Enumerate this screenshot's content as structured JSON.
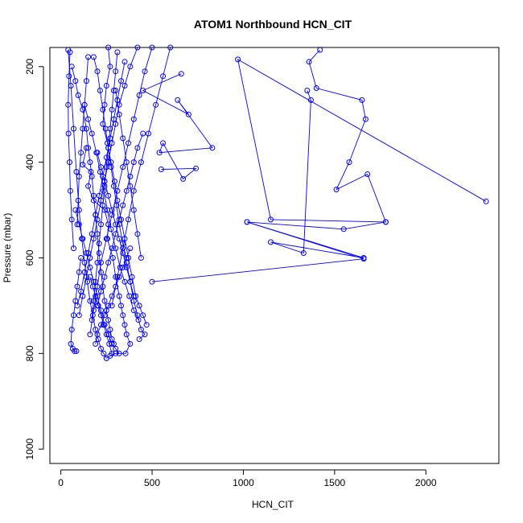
{
  "chart_data": {
    "type": "line",
    "title": "ATOM1 Northbound HCN_CIT",
    "xlabel": "HCN_CIT",
    "ylabel": "Pressure (mbar)",
    "xlim": [
      -60,
      2400
    ],
    "ylim": [
      1030,
      160
    ],
    "y_reversed": true,
    "grid": false,
    "x_ticks": [
      0,
      500,
      1000,
      1500,
      2000
    ],
    "x_tick_labels": [
      "0",
      "500",
      "1000",
      "1500",
      "2000"
    ],
    "y_ticks": [
      200,
      400,
      600,
      800,
      1000
    ],
    "y_tick_labels": [
      "200",
      "400",
      "600",
      "800",
      "1000"
    ],
    "colors": {
      "series": "#0000ff",
      "axis": "#000000"
    },
    "marker": "open-circle",
    "series": [
      {
        "x": [
          1420,
          1360,
          1400,
          1650,
          1670,
          1580,
          1510,
          1680,
          1780,
          1550,
          1020,
          1660,
          1150,
          1330,
          1370,
          1350
        ],
        "y": [
          165,
          190,
          245,
          270,
          310,
          400,
          457,
          425,
          525,
          540,
          525,
          600,
          567,
          590,
          270,
          250
        ]
      },
      {
        "x": [
          2330,
          970,
          1150,
          1780
        ],
        "y": [
          482,
          185,
          520,
          525
        ]
      },
      {
        "x": [
          1020,
          1660,
          500
        ],
        "y": [
          525,
          602,
          650
        ]
      },
      {
        "x": [
          660,
          450,
          700,
          640,
          830,
          540,
          560,
          670,
          740,
          550
        ],
        "y": [
          215,
          250,
          300,
          270,
          370,
          380,
          360,
          435,
          413,
          415
        ]
      },
      {
        "x": [
          140,
          120,
          165,
          150,
          180,
          240,
          260,
          255,
          285,
          300,
          320,
          330,
          340,
          350,
          360,
          380,
          355,
          300,
          270,
          250
        ],
        "y": [
          370,
          405,
          420,
          450,
          480,
          500,
          530,
          560,
          600,
          640,
          680,
          700,
          720,
          740,
          760,
          780,
          800,
          800,
          805,
          810
        ]
      },
      {
        "x": [
          60,
          80,
          95,
          120,
          140,
          150,
          160,
          170,
          180,
          190,
          200,
          210,
          220,
          230,
          240,
          250,
          260,
          270,
          280,
          290
        ],
        "y": [
          200,
          230,
          260,
          290,
          330,
          370,
          400,
          430,
          470,
          510,
          550,
          590,
          630,
          660,
          690,
          710,
          730,
          750,
          770,
          780
        ]
      },
      {
        "x": [
          180,
          200,
          215,
          230,
          245,
          260,
          275,
          290,
          305,
          320,
          340,
          360,
          380,
          400,
          420,
          440,
          460,
          430
        ],
        "y": [
          180,
          210,
          250,
          290,
          330,
          370,
          410,
          450,
          490,
          530,
          570,
          610,
          650,
          690,
          720,
          750,
          760,
          770
        ]
      },
      {
        "x": [
          310,
          300,
          290,
          280,
          270,
          260,
          250,
          240,
          230,
          220,
          210,
          200,
          190,
          180,
          170
        ],
        "y": [
          170,
          210,
          250,
          290,
          330,
          370,
          410,
          450,
          490,
          530,
          570,
          610,
          650,
          690,
          730
        ]
      },
      {
        "x": [
          420,
          380,
          350,
          320,
          300,
          280,
          260,
          240,
          220,
          200,
          180,
          160,
          140,
          120,
          100
        ],
        "y": [
          160,
          200,
          240,
          280,
          320,
          360,
          400,
          440,
          480,
          520,
          560,
          600,
          640,
          680,
          720
        ]
      },
      {
        "x": [
          40,
          55,
          70,
          85,
          100,
          115,
          130,
          145,
          160,
          175,
          190,
          205,
          220,
          235,
          250
        ],
        "y": [
          165,
          240,
          330,
          420,
          500,
          560,
          610,
          650,
          690,
          720,
          750,
          770,
          790,
          800,
          810
        ]
      },
      {
        "x": [
          260,
          270,
          250,
          240,
          230,
          255,
          275,
          295,
          310,
          330,
          350,
          370,
          390,
          410,
          430,
          450,
          470
        ],
        "y": [
          160,
          200,
          240,
          280,
          320,
          360,
          400,
          440,
          480,
          520,
          560,
          600,
          640,
          680,
          700,
          720,
          740
        ]
      },
      {
        "x": [
          450,
          420,
          400,
          380,
          360,
          340,
          320,
          300,
          280,
          260,
          240,
          220,
          200
        ],
        "y": [
          340,
          370,
          400,
          430,
          460,
          490,
          520,
          550,
          580,
          610,
          640,
          670,
          700
        ]
      },
      {
        "x": [
          130,
          150,
          170,
          195,
          215,
          235,
          255,
          275,
          300,
          325,
          350,
          375,
          400,
          425
        ],
        "y": [
          280,
          310,
          340,
          380,
          420,
          460,
          500,
          540,
          580,
          620,
          650,
          680,
          710,
          730
        ]
      },
      {
        "x": [
          350,
          330,
          310,
          290,
          270,
          250,
          230,
          210,
          190,
          170,
          150,
          130,
          110,
          90
        ],
        "y": [
          190,
          230,
          270,
          310,
          350,
          390,
          430,
          470,
          510,
          550,
          590,
          630,
          670,
          700
        ]
      },
      {
        "x": [
          500,
          460,
          430,
          400,
          370,
          340,
          310,
          280,
          250,
          220,
          200,
          180,
          160
        ],
        "y": [
          160,
          210,
          260,
          310,
          360,
          410,
          460,
          510,
          560,
          610,
          660,
          710,
          760
        ]
      },
      {
        "x": [
          80,
          100,
          120,
          140,
          160,
          180,
          200,
          220,
          240,
          260,
          280,
          300,
          320
        ],
        "y": [
          500,
          530,
          560,
          590,
          620,
          650,
          680,
          710,
          740,
          760,
          780,
          790,
          800
        ]
      },
      {
        "x": [
          600,
          560,
          520,
          480,
          440,
          400,
          370,
          340,
          310,
          280
        ],
        "y": [
          160,
          220,
          280,
          340,
          400,
          460,
          520,
          580,
          640,
          700
        ]
      },
      {
        "x": [
          110,
          100,
          90,
          80,
          70,
          60,
          55,
          65,
          75,
          85
        ],
        "y": [
          600,
          630,
          660,
          690,
          720,
          750,
          780,
          790,
          795,
          795
        ]
      },
      {
        "x": [
          380,
          360,
          340,
          320,
          300,
          280,
          260,
          240,
          220,
          200,
          190
        ],
        "y": [
          580,
          600,
          620,
          640,
          660,
          680,
          700,
          720,
          740,
          760,
          780
        ]
      },
      {
        "x": [
          200,
          220,
          240,
          260,
          280,
          300,
          320,
          340,
          360,
          380,
          400
        ],
        "y": [
          380,
          410,
          440,
          470,
          500,
          530,
          560,
          590,
          620,
          650,
          680
        ]
      },
      {
        "x": [
          50,
          45,
          40,
          42,
          48,
          52,
          60,
          70
        ],
        "y": [
          170,
          220,
          280,
          340,
          400,
          460,
          520,
          580
        ]
      },
      {
        "x": [
          160,
          175,
          190,
          205,
          220,
          235,
          250,
          265,
          280
        ],
        "y": [
          640,
          660,
          680,
          700,
          720,
          740,
          760,
          780,
          800
        ]
      },
      {
        "x": [
          300,
          320,
          340,
          360,
          380,
          400,
          420,
          440
        ],
        "y": [
          250,
          300,
          350,
          400,
          450,
          500,
          550,
          600
        ]
      },
      {
        "x": [
          150,
          140,
          130,
          120,
          110,
          100,
          95,
          90
        ],
        "y": [
          180,
          230,
          280,
          330,
          380,
          430,
          480,
          530
        ]
      }
    ]
  }
}
